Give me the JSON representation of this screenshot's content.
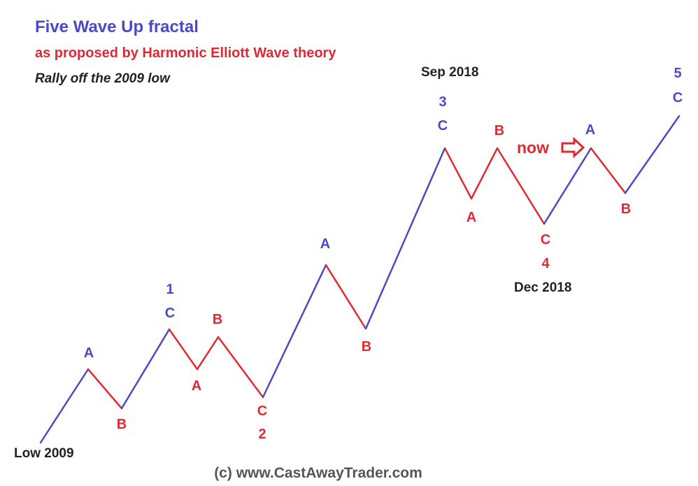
{
  "title": "Five Wave Up fractal",
  "subtitle": "as proposed by Harmonic Elliott Wave theory",
  "caption": "Rally off the 2009 low",
  "copyright": "(c) www.CastAwayTrader.com",
  "colors": {
    "impulse": "#4a4ac4",
    "corrective": "#e02a33",
    "dark_text": "#222222",
    "copyright": "#555555",
    "background": "#ffffff"
  },
  "annotation": {
    "now_label": "now",
    "now_icon": "right-arrow-icon"
  },
  "dates": {
    "low": "Low 2009",
    "sep": "Sep 2018",
    "dec": "Dec 2018"
  },
  "labels": {
    "w1a": "A",
    "w1b": "B",
    "w1_num": "1",
    "w1_c": "C",
    "w2a": "A",
    "w2b": "B",
    "w2_c": "C",
    "w2_num": "2",
    "w3a": "A",
    "w3b": "B",
    "w3_num": "3",
    "w3_c": "C",
    "w4a": "A",
    "w4b": "B",
    "w4_c": "C",
    "w4_num": "4",
    "w5a": "A",
    "w5b": "B",
    "w5_num": "5",
    "w5_c": "C"
  }
}
